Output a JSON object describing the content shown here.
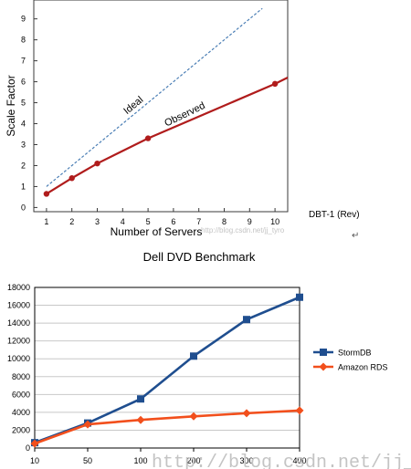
{
  "chart_data": [
    {
      "type": "line",
      "title": "",
      "xlabel": "Number of Servers",
      "ylabel": "Scale Factor",
      "note": "DBT-1 (Rev)",
      "x_ticks": [
        "1",
        "2",
        "3",
        "4",
        "5",
        "6",
        "7",
        "8",
        "9",
        "10"
      ],
      "y_ticks": [
        "0",
        "1",
        "2",
        "3",
        "4",
        "5",
        "6",
        "7",
        "8",
        "9"
      ],
      "xlim": [
        0.5,
        10.5
      ],
      "ylim": [
        -0.2,
        9.9
      ],
      "grid": false,
      "series": [
        {
          "name": "Ideal",
          "style": "dashed",
          "color": "#4a7eb5",
          "x": [
            1,
            9.5
          ],
          "y": [
            1,
            9.5
          ]
        },
        {
          "name": "Observed",
          "style": "solid",
          "color": "#b01c1c",
          "x": [
            1,
            2,
            3,
            5,
            10,
            10.5
          ],
          "y": [
            0.65,
            1.4,
            2.1,
            3.3,
            5.9,
            6.2
          ],
          "markers_x": [
            1,
            2,
            3,
            5,
            10
          ]
        }
      ]
    },
    {
      "type": "line",
      "title": "Dell DVD Benchmark",
      "xlabel": "",
      "ylabel": "",
      "categories": [
        "10",
        "50",
        "100",
        "200",
        "300",
        "400"
      ],
      "y_ticks": [
        "0",
        "2000",
        "4000",
        "6000",
        "8000",
        "10000",
        "12000",
        "14000",
        "16000",
        "18000"
      ],
      "ylim": [
        0,
        18000
      ],
      "grid": true,
      "legend": "right",
      "series": [
        {
          "name": "StormDB",
          "color": "#1f4e8f",
          "marker": "square",
          "values": [
            600,
            2800,
            5500,
            10300,
            14400,
            16900
          ]
        },
        {
          "name": "Amazon RDS",
          "color": "#f24f1c",
          "marker": "diamond",
          "values": [
            500,
            2650,
            3150,
            3550,
            3900,
            4200
          ]
        }
      ]
    }
  ],
  "watermark": {
    "small": "http://blog.csdn.net/jj_tyro",
    "large": "http://blog.csdn.net/jj_tyro"
  }
}
